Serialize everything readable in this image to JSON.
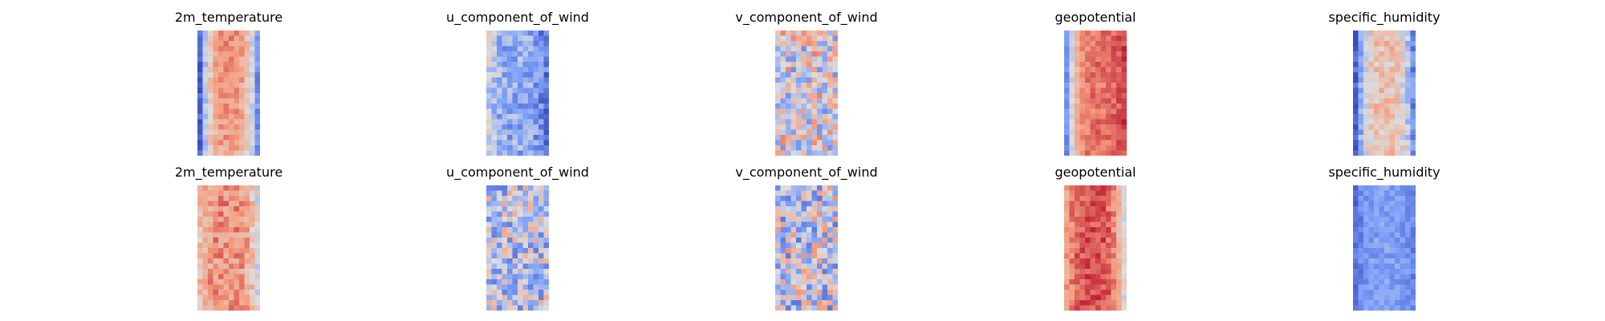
{
  "chart_data": [
    {
      "type": "heatmap",
      "title": "2m_temperature",
      "colormap": "coolwarm",
      "rows": 24,
      "cols": 12,
      "pattern": "band",
      "seed": 11,
      "edge_level": [
        0.08,
        0.22
      ],
      "center_level": [
        0.78,
        0.72
      ],
      "noise": 0.09,
      "axes": "off"
    },
    {
      "type": "heatmap",
      "title": "u_component_of_wind",
      "colormap": "coolwarm",
      "rows": 24,
      "cols": 12,
      "pattern": "band",
      "seed": 23,
      "edge_level": [
        0.45,
        0.12
      ],
      "center_level": [
        0.3,
        0.3
      ],
      "noise": 0.16,
      "axes": "off"
    },
    {
      "type": "heatmap",
      "title": "v_component_of_wind",
      "colormap": "coolwarm",
      "rows": 24,
      "cols": 12,
      "pattern": "noise",
      "seed": 37,
      "edge_level": [
        0.5,
        0.5
      ],
      "center_level": [
        0.5,
        0.5
      ],
      "noise": 0.3,
      "axes": "off"
    },
    {
      "type": "heatmap",
      "title": "geopotential",
      "colormap": "coolwarm",
      "rows": 24,
      "cols": 12,
      "pattern": "band",
      "seed": 41,
      "edge_level": [
        0.2,
        0.9
      ],
      "center_level": [
        0.82,
        0.82
      ],
      "noise": 0.07,
      "axes": "off"
    },
    {
      "type": "heatmap",
      "title": "specific_humidity",
      "colormap": "coolwarm",
      "rows": 24,
      "cols": 12,
      "pattern": "band",
      "seed": 53,
      "edge_level": [
        0.06,
        0.2
      ],
      "center_level": [
        0.62,
        0.62
      ],
      "noise": 0.12,
      "axes": "off"
    },
    {
      "type": "heatmap",
      "title": "2m_temperature",
      "colormap": "coolwarm",
      "rows": 24,
      "cols": 12,
      "pattern": "band",
      "seed": 67,
      "edge_level": [
        0.62,
        0.5
      ],
      "center_level": [
        0.76,
        0.76
      ],
      "noise": 0.12,
      "axes": "off"
    },
    {
      "type": "heatmap",
      "title": "u_component_of_wind",
      "colormap": "coolwarm",
      "rows": 24,
      "cols": 12,
      "pattern": "noise",
      "seed": 71,
      "edge_level": [
        0.42,
        0.42
      ],
      "center_level": [
        0.42,
        0.42
      ],
      "noise": 0.28,
      "axes": "off"
    },
    {
      "type": "heatmap",
      "title": "v_component_of_wind",
      "colormap": "coolwarm",
      "rows": 24,
      "cols": 12,
      "pattern": "noise",
      "seed": 83,
      "edge_level": [
        0.45,
        0.45
      ],
      "center_level": [
        0.45,
        0.45
      ],
      "noise": 0.32,
      "axes": "off"
    },
    {
      "type": "heatmap",
      "title": "geopotential",
      "colormap": "coolwarm",
      "rows": 24,
      "cols": 12,
      "pattern": "band",
      "seed": 97,
      "edge_level": [
        0.72,
        0.5
      ],
      "center_level": [
        0.88,
        0.88
      ],
      "noise": 0.08,
      "axes": "off"
    },
    {
      "type": "heatmap",
      "title": "specific_humidity",
      "colormap": "coolwarm",
      "rows": 24,
      "cols": 12,
      "pattern": "band",
      "seed": 101,
      "edge_level": [
        0.12,
        0.18
      ],
      "center_level": [
        0.26,
        0.26
      ],
      "noise": 0.08,
      "axes": "off"
    }
  ]
}
